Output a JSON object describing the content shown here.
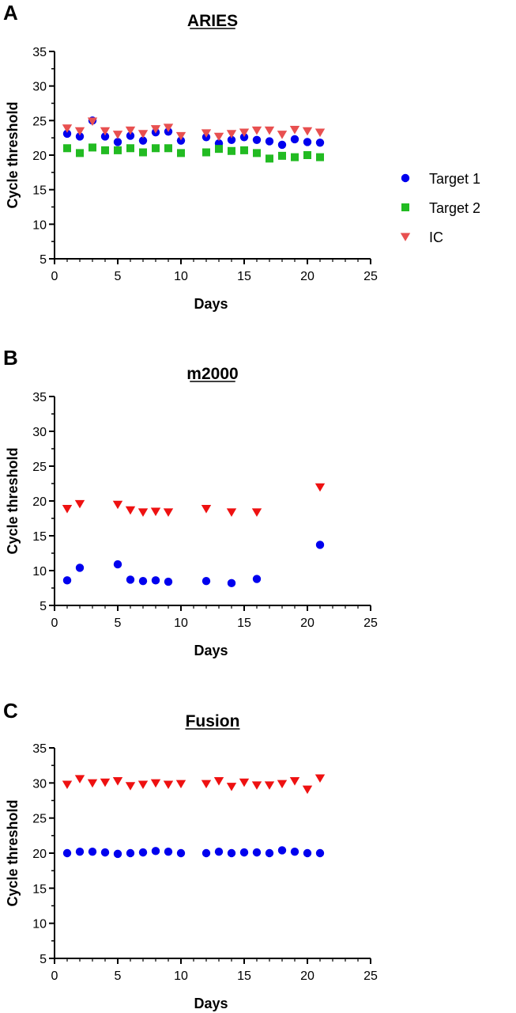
{
  "colors": {
    "target1": "#0000ee",
    "target2": "#22bb22",
    "ic_aries": "#e85050",
    "ic_other": "#ee1111",
    "axis": "#000000"
  },
  "legend": {
    "items": [
      {
        "label": "Target 1",
        "marker": "circle",
        "color": "#0000ee"
      },
      {
        "label": "Target 2",
        "marker": "square",
        "color": "#22bb22"
      },
      {
        "label": "IC",
        "marker": "triangle-down",
        "color": "#e85050"
      }
    ]
  },
  "chart_data": [
    {
      "panel": "A",
      "type": "scatter",
      "title": "ARIES",
      "xlabel": "Days",
      "ylabel": "Cycle threshold",
      "xlim": [
        0,
        25
      ],
      "ylim": [
        5,
        35
      ],
      "xticks": [
        0,
        5,
        10,
        15,
        20,
        25
      ],
      "yticks": [
        5,
        10,
        15,
        20,
        25,
        30,
        35
      ],
      "series": [
        {
          "name": "Target 1",
          "marker": "circle",
          "color": "#0000ee",
          "x": [
            1,
            2,
            3,
            4,
            5,
            6,
            7,
            8,
            9,
            10,
            12,
            13,
            14,
            15,
            16,
            17,
            18,
            19,
            20,
            21
          ],
          "y": [
            23.1,
            22.7,
            25.0,
            22.7,
            21.9,
            22.8,
            22.1,
            23.3,
            23.4,
            22.1,
            22.6,
            21.7,
            22.2,
            22.6,
            22.2,
            22.0,
            21.5,
            22.3,
            21.9,
            21.8
          ]
        },
        {
          "name": "Target 2",
          "marker": "square",
          "color": "#22bb22",
          "x": [
            1,
            2,
            3,
            4,
            5,
            6,
            7,
            8,
            9,
            10,
            12,
            13,
            14,
            15,
            16,
            17,
            18,
            19,
            20,
            21
          ],
          "y": [
            21.0,
            20.3,
            21.1,
            20.7,
            20.7,
            21.0,
            20.4,
            21.0,
            21.0,
            20.3,
            20.4,
            20.9,
            20.6,
            20.7,
            20.3,
            19.5,
            19.9,
            19.7,
            20.0,
            19.7
          ]
        },
        {
          "name": "IC",
          "marker": "triangle-down",
          "color": "#e85050",
          "x": [
            1,
            2,
            3,
            4,
            5,
            6,
            7,
            8,
            9,
            10,
            12,
            13,
            14,
            15,
            16,
            17,
            18,
            19,
            20,
            21
          ],
          "y": [
            23.9,
            23.5,
            24.9,
            23.5,
            23.0,
            23.6,
            23.1,
            23.8,
            24.0,
            22.8,
            23.2,
            22.7,
            23.1,
            23.3,
            23.6,
            23.6,
            23.0,
            23.7,
            23.5,
            23.3
          ]
        }
      ]
    },
    {
      "panel": "B",
      "type": "scatter",
      "title": "m2000",
      "xlabel": "Days",
      "ylabel": "Cycle threshold",
      "xlim": [
        0,
        25
      ],
      "ylim": [
        5,
        35
      ],
      "xticks": [
        0,
        5,
        10,
        15,
        20,
        25
      ],
      "yticks": [
        5,
        10,
        15,
        20,
        25,
        30,
        35
      ],
      "series": [
        {
          "name": "Target 1",
          "marker": "circle",
          "color": "#0000ee",
          "x": [
            1,
            2,
            5,
            6,
            7,
            8,
            9,
            12,
            14,
            16,
            21
          ],
          "y": [
            8.6,
            10.4,
            10.9,
            8.7,
            8.5,
            8.6,
            8.4,
            8.5,
            8.2,
            8.8,
            13.7
          ]
        },
        {
          "name": "IC",
          "marker": "triangle-down",
          "color": "#ee1111",
          "x": [
            1,
            2,
            5,
            6,
            7,
            8,
            9,
            12,
            14,
            16,
            21
          ],
          "y": [
            18.9,
            19.6,
            19.5,
            18.7,
            18.4,
            18.5,
            18.4,
            18.9,
            18.4,
            18.4,
            22.0
          ]
        }
      ]
    },
    {
      "panel": "C",
      "type": "scatter",
      "title": "Fusion",
      "xlabel": "Days",
      "ylabel": "Cycle threshold",
      "xlim": [
        0,
        25
      ],
      "ylim": [
        5,
        35
      ],
      "xticks": [
        0,
        5,
        10,
        15,
        20,
        25
      ],
      "yticks": [
        5,
        10,
        15,
        20,
        25,
        30,
        35
      ],
      "series": [
        {
          "name": "Target 1",
          "marker": "circle",
          "color": "#0000ee",
          "x": [
            1,
            2,
            3,
            4,
            5,
            6,
            7,
            8,
            9,
            10,
            12,
            13,
            14,
            15,
            16,
            17,
            18,
            19,
            20,
            21
          ],
          "y": [
            20.0,
            20.2,
            20.2,
            20.1,
            19.9,
            20.0,
            20.1,
            20.3,
            20.2,
            20.0,
            20.0,
            20.2,
            20.0,
            20.1,
            20.1,
            20.0,
            20.4,
            20.2,
            20.0,
            20.0
          ]
        },
        {
          "name": "IC",
          "marker": "triangle-down",
          "color": "#ee1111",
          "x": [
            1,
            2,
            3,
            4,
            5,
            6,
            7,
            8,
            9,
            10,
            12,
            13,
            14,
            15,
            16,
            17,
            18,
            19,
            20,
            21
          ],
          "y": [
            29.8,
            30.6,
            30.0,
            30.1,
            30.3,
            29.6,
            29.8,
            30.0,
            29.8,
            29.9,
            29.9,
            30.3,
            29.5,
            30.1,
            29.7,
            29.7,
            29.9,
            30.3,
            29.1,
            30.7
          ]
        }
      ]
    }
  ]
}
